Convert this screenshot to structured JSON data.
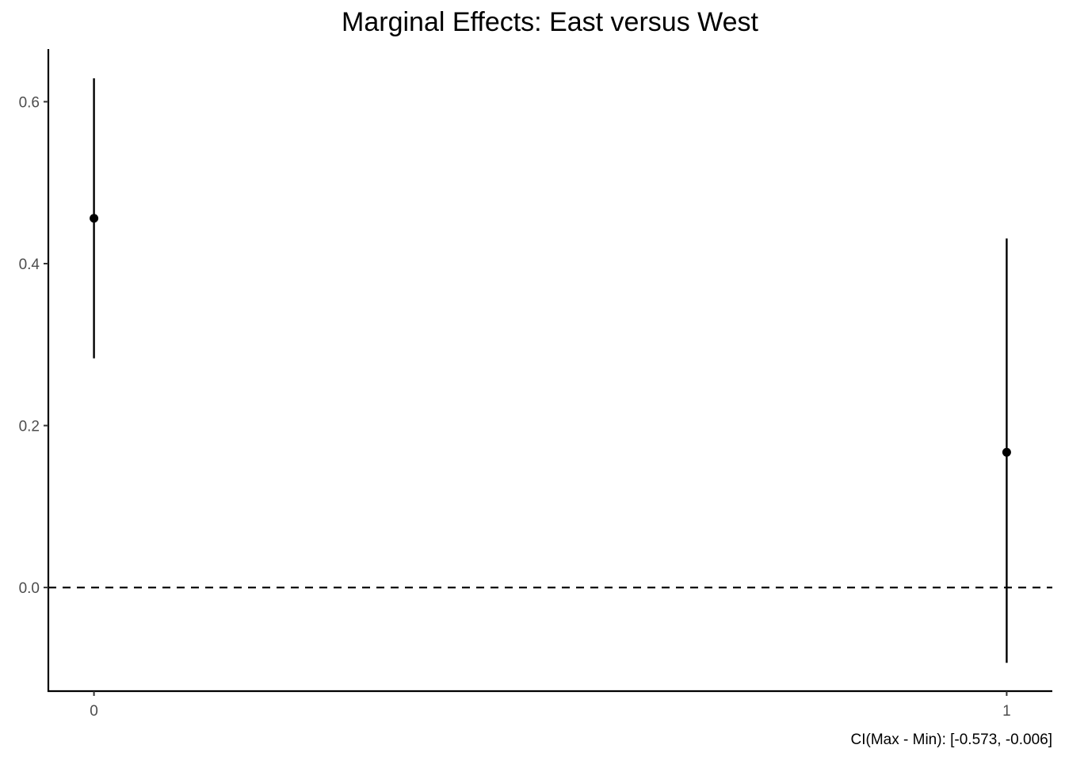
{
  "chart_data": {
    "type": "scatter",
    "title": "Marginal Effects: East versus West",
    "caption": "CI(Max - Min): [-0.573, -0.006]",
    "xlabel": "",
    "ylabel": "",
    "x_ticks": [
      "0",
      "1"
    ],
    "y_ticks": [
      "0.0",
      "0.2",
      "0.4",
      "0.6"
    ],
    "xlim": [
      -0.05,
      1.05
    ],
    "ylim": [
      -0.128,
      0.665
    ],
    "points": [
      {
        "x": 0,
        "y": 0.456,
        "lower": 0.283,
        "upper": 0.629
      },
      {
        "x": 1,
        "y": 0.167,
        "lower": -0.093,
        "upper": 0.431
      }
    ],
    "reference_line": {
      "y": 0.0,
      "style": "dashed"
    },
    "grid": false,
    "colors": {
      "marks": "#000000",
      "tick_labels": "#4d4d4d"
    }
  }
}
